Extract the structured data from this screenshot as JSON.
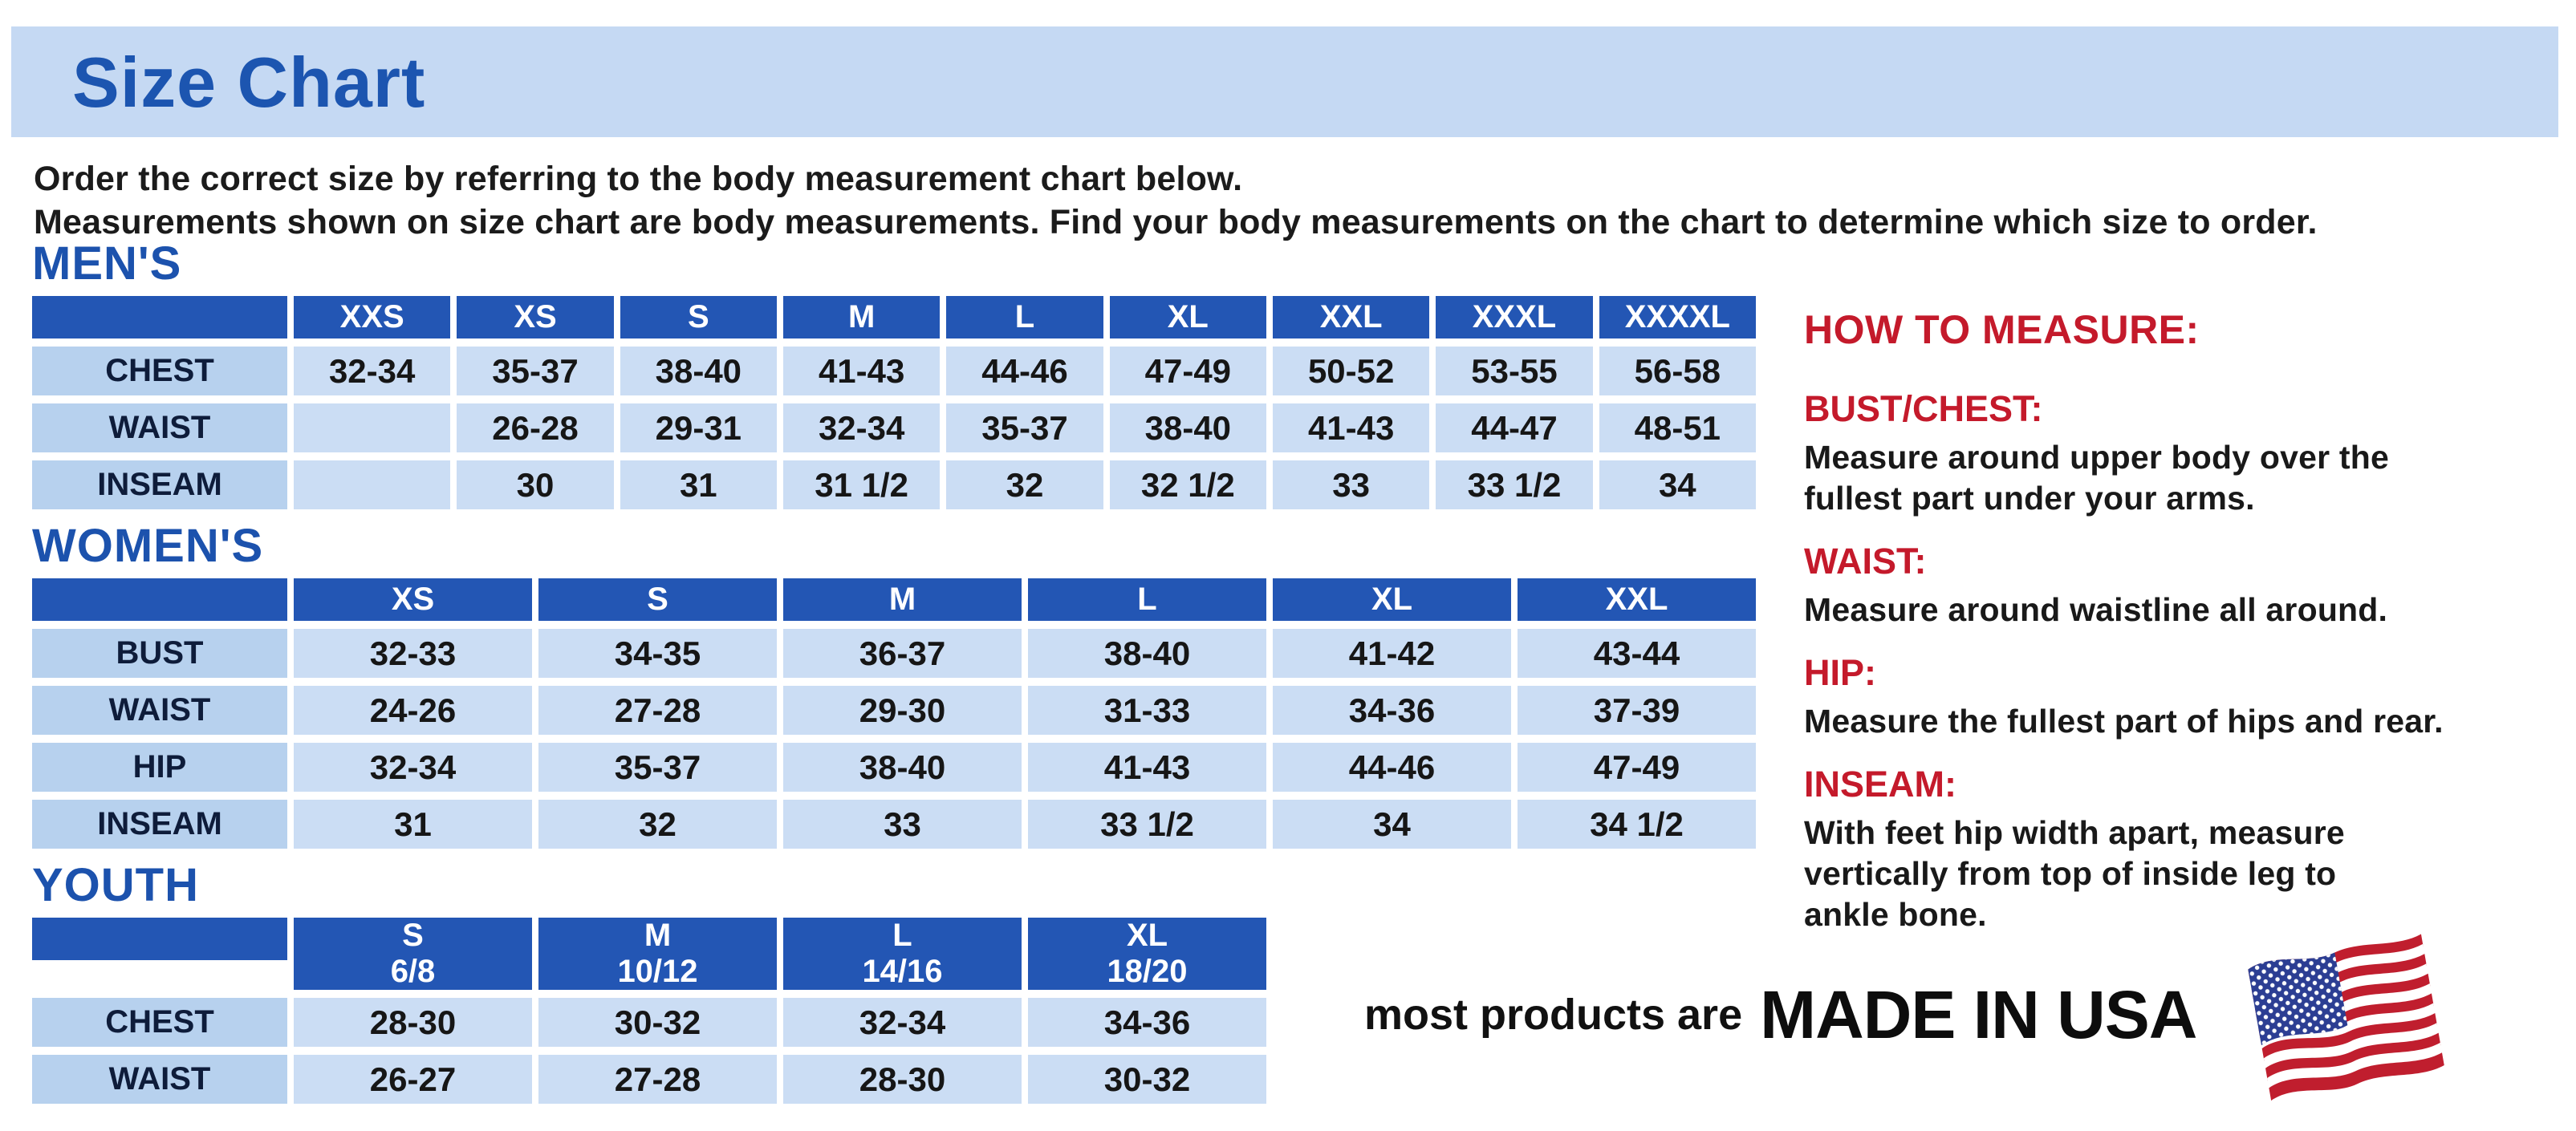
{
  "header": {
    "title": "Size Chart"
  },
  "intro": {
    "line1": "Order the correct size by referring to the body measurement chart below.",
    "line2": "Measurements shown on size chart are body measurements.  Find your body measurements on the chart to determine which size to order."
  },
  "tables": [
    {
      "id": "mens",
      "heading": "MEN'S",
      "columns": [
        "XXS",
        "XS",
        "S",
        "M",
        "L",
        "XL",
        "XXL",
        "XXXL",
        "XXXXL"
      ],
      "rows": [
        {
          "label": "CHEST",
          "values": [
            "32-34",
            "35-37",
            "38-40",
            "41-43",
            "44-46",
            "47-49",
            "50-52",
            "53-55",
            "56-58"
          ]
        },
        {
          "label": "WAIST",
          "values": [
            "",
            "26-28",
            "29-31",
            "32-34",
            "35-37",
            "38-40",
            "41-43",
            "44-47",
            "48-51"
          ]
        },
        {
          "label": "INSEAM",
          "values": [
            "",
            "30",
            "31",
            "31 1/2",
            "32",
            "32 1/2",
            "33",
            "33 1/2",
            "34"
          ]
        }
      ]
    },
    {
      "id": "womens",
      "heading": "WOMEN'S",
      "columns": [
        "XS",
        "S",
        "M",
        "L",
        "XL",
        "XXL"
      ],
      "rows": [
        {
          "label": "BUST",
          "values": [
            "32-33",
            "34-35",
            "36-37",
            "38-40",
            "41-42",
            "43-44"
          ]
        },
        {
          "label": "WAIST",
          "values": [
            "24-26",
            "27-28",
            "29-30",
            "31-33",
            "34-36",
            "37-39"
          ]
        },
        {
          "label": "HIP",
          "values": [
            "32-34",
            "35-37",
            "38-40",
            "41-43",
            "44-46",
            "47-49"
          ]
        },
        {
          "label": "INSEAM",
          "values": [
            "31",
            "32",
            "33",
            "33 1/2",
            "34",
            "34 1/2"
          ]
        }
      ]
    },
    {
      "id": "youth",
      "heading": "YOUTH",
      "columns": [
        "S\n6/8",
        "M\n10/12",
        "L\n14/16",
        "XL\n18/20"
      ],
      "rows": [
        {
          "label": "CHEST",
          "values": [
            "28-30",
            "30-32",
            "32-34",
            "34-36"
          ]
        },
        {
          "label": "WAIST",
          "values": [
            "26-27",
            "27-28",
            "28-30",
            "30-32"
          ]
        }
      ]
    }
  ],
  "how_to_measure": {
    "heading": "HOW TO MEASURE:",
    "items": [
      {
        "label": "BUST/CHEST:",
        "text": "Measure around upper body over the\nfullest part under your arms."
      },
      {
        "label": "WAIST:",
        "text": "Measure around waistline all around."
      },
      {
        "label": "HIP:",
        "text": "Measure the fullest part of hips and rear."
      },
      {
        "label": "INSEAM:",
        "text": "With feet hip width apart, measure\nvertically from top of inside leg to\nankle bone."
      }
    ]
  },
  "footer": {
    "prefix": "most products are",
    "emphasis": "MADE IN USA",
    "flag_icon": "usa-flag-icon"
  },
  "colors": {
    "banner_bg": "#c5d9f3",
    "heading_blue": "#1c52ad",
    "table_header_bg": "#2356b4",
    "label_cell_bg": "#b7d1ee",
    "data_cell_bg": "#cbddf4",
    "accent_red": "#c41a2b",
    "flag_red": "#c01e2e",
    "flag_blue": "#2c3e93"
  }
}
